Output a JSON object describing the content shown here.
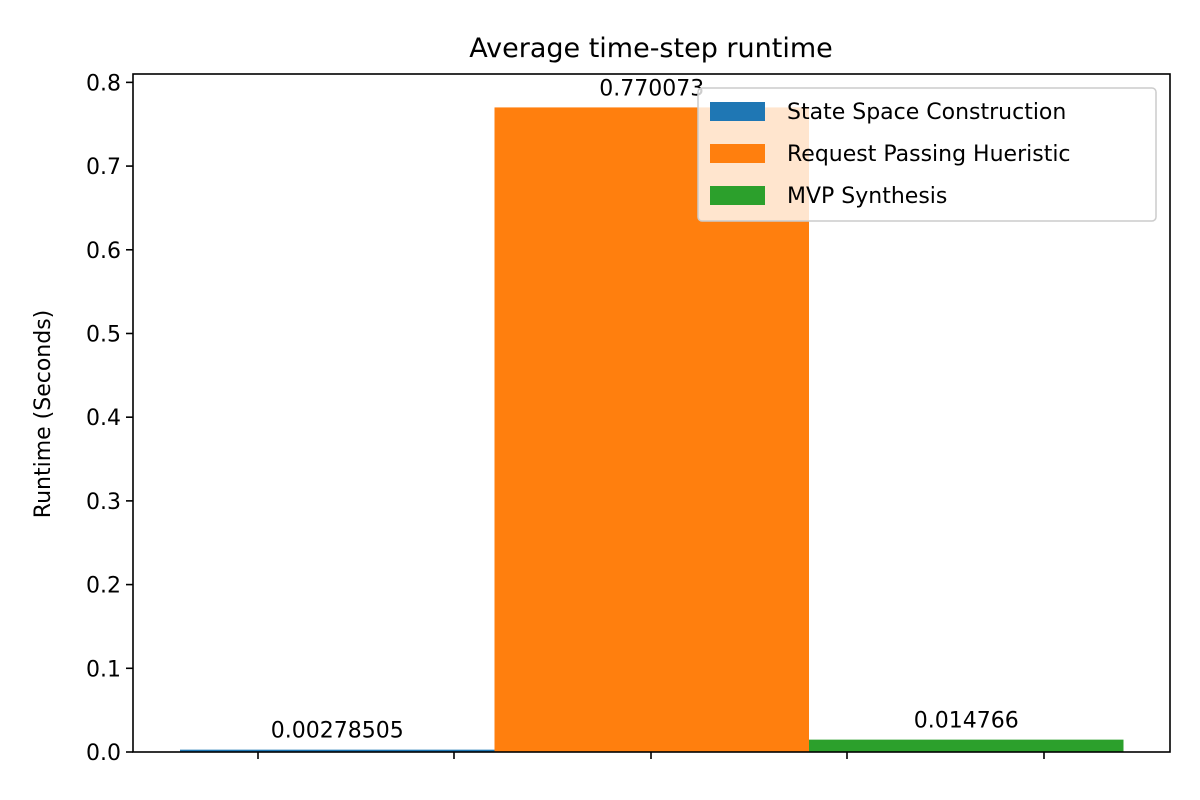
{
  "chart_data": {
    "type": "bar",
    "title": "Average time-step runtime",
    "xlabel": "",
    "ylabel": "Runtime (Seconds)",
    "ylim": [
      0,
      0.81
    ],
    "yticks": [
      "0.0",
      "0.1",
      "0.2",
      "0.3",
      "0.4",
      "0.5",
      "0.6",
      "0.7",
      "0.8"
    ],
    "grid": false,
    "legend_position": "top-right",
    "series": [
      {
        "name": "State Space Construction",
        "value": 0.00278505,
        "label": "0.00278505",
        "color": "#1f77b4"
      },
      {
        "name": "Request Passing Hueristic",
        "value": 0.770073,
        "label": "0.770073",
        "color": "#ff7f0e"
      },
      {
        "name": "MVP Synthesis",
        "value": 0.014766,
        "label": "0.014766",
        "color": "#2ca02c"
      }
    ]
  }
}
